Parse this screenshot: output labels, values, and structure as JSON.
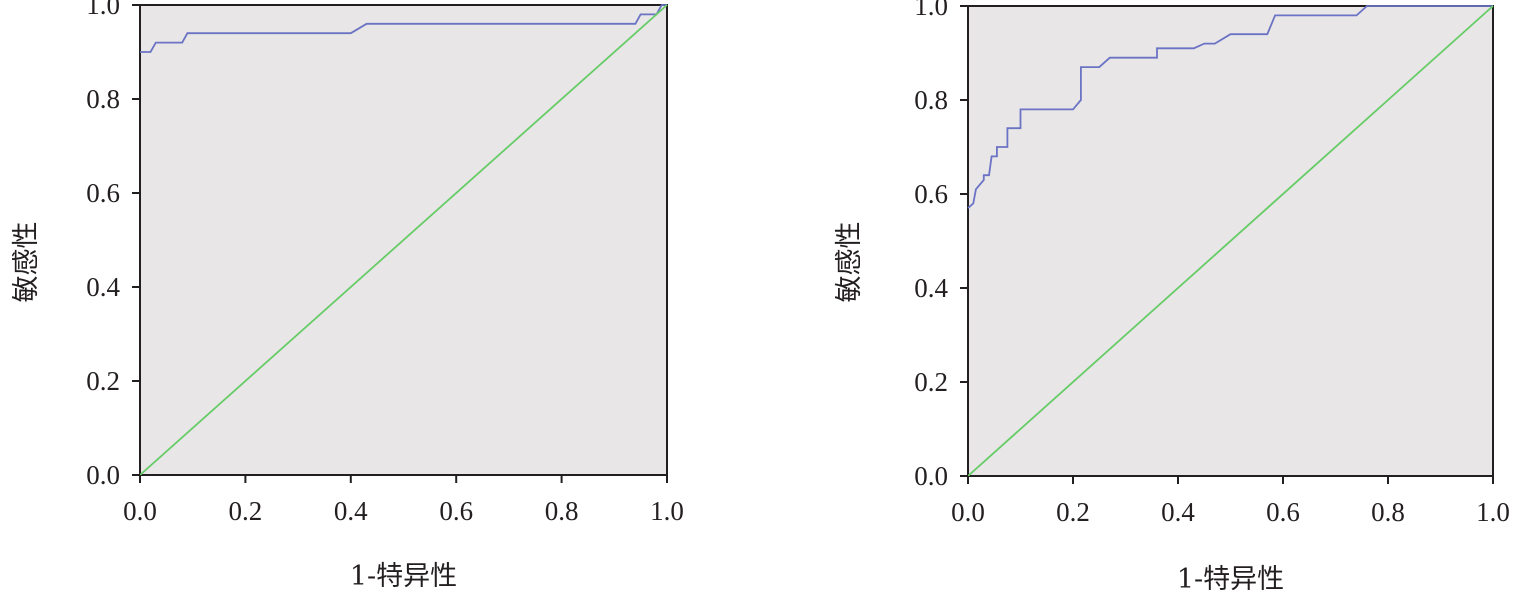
{
  "chart_data": [
    {
      "type": "line",
      "xlabel": "1-特异性",
      "ylabel": "敏感性",
      "xlim": [
        0,
        1
      ],
      "ylim": [
        0,
        1
      ],
      "x_ticks": [
        "0.0",
        "0.2",
        "0.4",
        "0.6",
        "0.8",
        "1.0"
      ],
      "y_ticks": [
        "0.0",
        "0.2",
        "0.4",
        "0.6",
        "0.8",
        "1.0"
      ],
      "grid": false,
      "legend": "none",
      "plot_background": "#e8e6e7",
      "series": [
        {
          "color": "#6b73c4",
          "style": "step",
          "points": [
            [
              0.0,
              0.9
            ],
            [
              0.02,
              0.9
            ],
            [
              0.03,
              0.92
            ],
            [
              0.08,
              0.92
            ],
            [
              0.09,
              0.94
            ],
            [
              0.4,
              0.94
            ],
            [
              0.43,
              0.96
            ],
            [
              0.94,
              0.96
            ],
            [
              0.95,
              0.98
            ],
            [
              0.98,
              0.98
            ],
            [
              0.99,
              1.0
            ],
            [
              1.0,
              1.0
            ]
          ]
        },
        {
          "color": "#66cc66",
          "style": "line",
          "points": [
            [
              0,
              0
            ],
            [
              1,
              1
            ]
          ]
        }
      ]
    },
    {
      "type": "line",
      "xlabel": "1-特异性",
      "ylabel": "敏感性",
      "xlim": [
        0,
        1
      ],
      "ylim": [
        0,
        1
      ],
      "x_ticks": [
        "0.0",
        "0.2",
        "0.4",
        "0.6",
        "0.8",
        "1.0"
      ],
      "y_ticks": [
        "0.0",
        "0.2",
        "0.4",
        "0.6",
        "0.8",
        "1.0"
      ],
      "grid": false,
      "legend": "none",
      "plot_background": "#e8e6e7",
      "series": [
        {
          "color": "#6b73c4",
          "style": "step",
          "points": [
            [
              0.0,
              0.57
            ],
            [
              0.01,
              0.58
            ],
            [
              0.015,
              0.61
            ],
            [
              0.03,
              0.63
            ],
            [
              0.03,
              0.64
            ],
            [
              0.04,
              0.64
            ],
            [
              0.045,
              0.68
            ],
            [
              0.055,
              0.68
            ],
            [
              0.055,
              0.7
            ],
            [
              0.075,
              0.7
            ],
            [
              0.075,
              0.74
            ],
            [
              0.1,
              0.74
            ],
            [
              0.1,
              0.78
            ],
            [
              0.2,
              0.78
            ],
            [
              0.215,
              0.8
            ],
            [
              0.215,
              0.87
            ],
            [
              0.25,
              0.87
            ],
            [
              0.27,
              0.89
            ],
            [
              0.36,
              0.89
            ],
            [
              0.36,
              0.91
            ],
            [
              0.43,
              0.91
            ],
            [
              0.45,
              0.92
            ],
            [
              0.47,
              0.92
            ],
            [
              0.5,
              0.94
            ],
            [
              0.57,
              0.94
            ],
            [
              0.585,
              0.98
            ],
            [
              0.74,
              0.98
            ],
            [
              0.76,
              1.0
            ],
            [
              1.0,
              1.0
            ]
          ]
        },
        {
          "color": "#66cc66",
          "style": "line",
          "points": [
            [
              0,
              0
            ],
            [
              1,
              1
            ]
          ]
        }
      ]
    }
  ]
}
